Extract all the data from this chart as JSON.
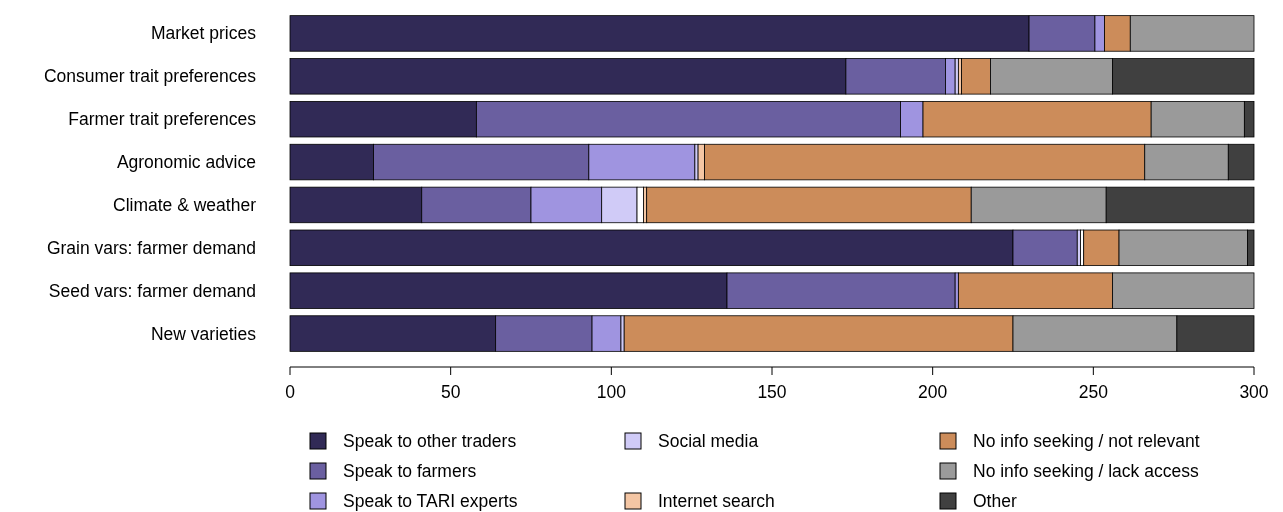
{
  "chart_data": {
    "type": "bar",
    "orientation": "horizontal",
    "stacked": true,
    "categories": [
      "Market prices",
      "Consumer trait preferences",
      "Farmer trait preferences",
      "Agronomic advice",
      "Climate & weather",
      "Grain vars: farmer demand",
      "Seed vars: farmer demand",
      "New varieties"
    ],
    "series": [
      {
        "name": "Speak to other traders",
        "color": "#312a56",
        "values": [
          230,
          173,
          58,
          26,
          41,
          225,
          136,
          64
        ]
      },
      {
        "name": "Speak to farmers",
        "color": "#6a5fa0",
        "values": [
          20.5,
          31,
          132,
          67,
          34,
          20,
          71,
          30
        ]
      },
      {
        "name": "Speak to TARI experts",
        "color": "#9f94e0",
        "values": [
          3,
          3,
          7,
          33,
          22,
          0,
          1,
          9
        ]
      },
      {
        "name": "Social media",
        "color": "#d0cbf7",
        "values": [
          0,
          1,
          0,
          1,
          11,
          1,
          0,
          1
        ]
      },
      {
        "color": "#ffffff",
        "values": [
          0,
          0,
          0,
          0,
          2,
          1,
          0,
          0
        ]
      },
      {
        "name": "Internet search",
        "color": "#f4c6a4",
        "values": [
          0,
          1,
          0,
          2,
          1,
          0,
          0,
          0
        ]
      },
      {
        "name": "No info seeking / not relevant",
        "color": "#cc8c5a",
        "values": [
          8,
          9,
          71,
          137,
          101,
          11,
          48,
          121
        ]
      },
      {
        "name": "No info seeking / lack access",
        "color": "#9a9a9a",
        "values": [
          38.5,
          38,
          29,
          26,
          42,
          40,
          44,
          51
        ]
      },
      {
        "name": "Other",
        "color": "#404040",
        "values": [
          0,
          44,
          3,
          8,
          46,
          2,
          0,
          24
        ]
      }
    ],
    "xlim": [
      0,
      300
    ],
    "xticks": [
      0,
      50,
      100,
      150,
      200,
      250,
      300
    ],
    "grid": false,
    "legend": "bottom"
  }
}
